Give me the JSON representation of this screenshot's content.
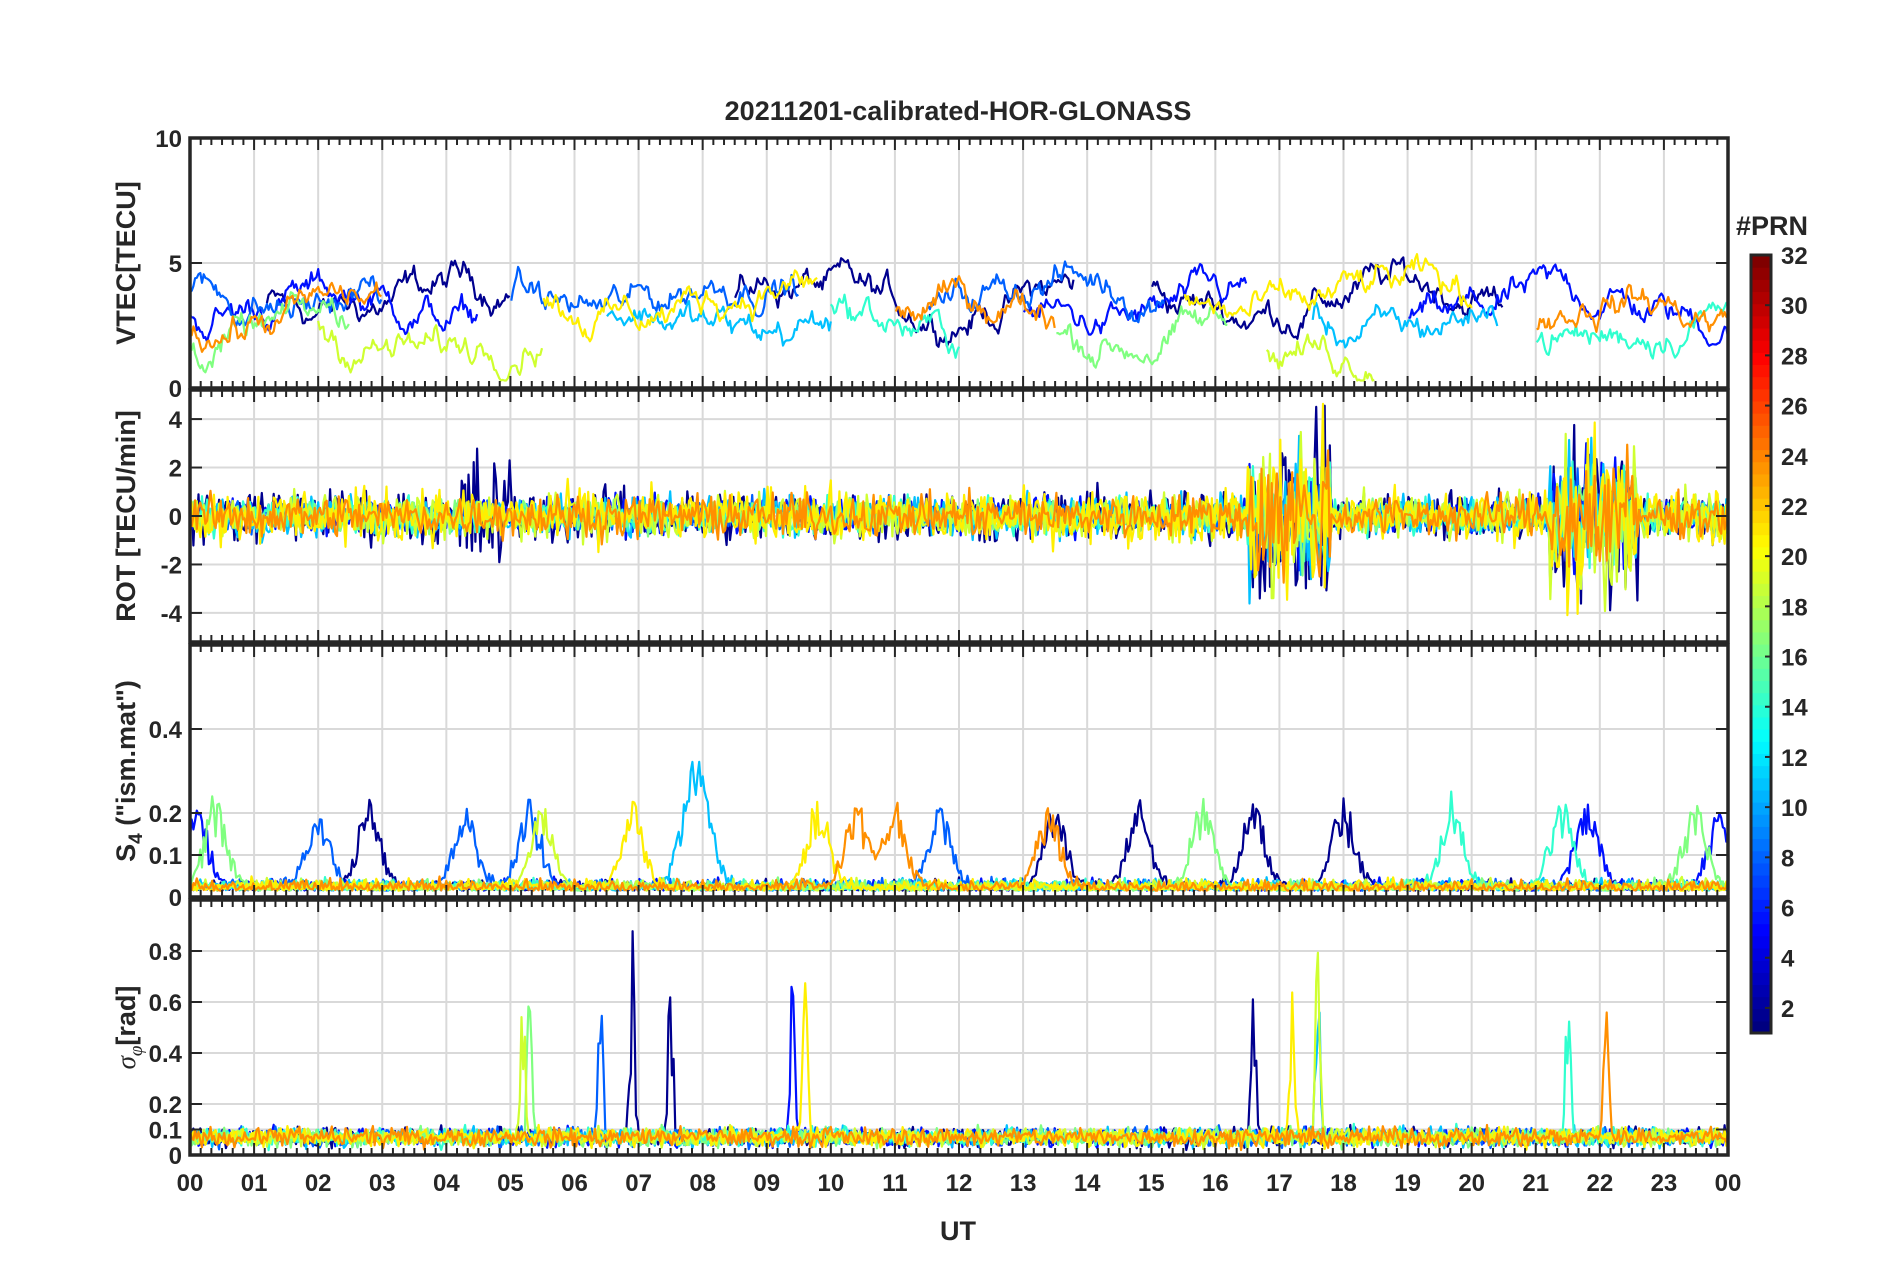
{
  "chart_data": {
    "type": "line",
    "title": "20211201-calibrated-HOR-GLONASS",
    "xlabel": "UT",
    "x_range_hours": [
      0,
      24
    ],
    "x_tick_labels": [
      "00",
      "01",
      "02",
      "03",
      "04",
      "05",
      "06",
      "07",
      "08",
      "09",
      "10",
      "11",
      "12",
      "13",
      "14",
      "15",
      "16",
      "17",
      "18",
      "19",
      "20",
      "21",
      "22",
      "23",
      "00"
    ],
    "panels": [
      {
        "id": "vtec",
        "ylabel": "VTEC[TECU]",
        "ylim": [
          0,
          10
        ],
        "yticks": [
          0,
          5,
          10
        ],
        "ytick_labels": [
          "0",
          "5",
          "10"
        ],
        "grid": true
      },
      {
        "id": "rot",
        "ylabel": "ROT [TECU/min]",
        "ylim": [
          -5.2,
          5.2
        ],
        "yticks": [
          -4,
          -2,
          0,
          2,
          4
        ],
        "ytick_labels": [
          "-4",
          "-2",
          "0",
          "2",
          "4"
        ],
        "grid": true
      },
      {
        "id": "s4",
        "ylabel_main": "S",
        "ylabel_sub": "4",
        "ylabel_rest": " (\"ism.mat\")",
        "ylim": [
          0,
          0.6
        ],
        "yticks": [
          0,
          0.1,
          0.2,
          0.4
        ],
        "ytick_labels": [
          "0",
          "0.1",
          "0.2",
          "0.4"
        ],
        "grid": true
      },
      {
        "id": "sigma",
        "ylabel_main": "σ",
        "ylabel_sub": "φ",
        "ylabel_rest": "[rad]",
        "ylim": [
          0,
          1
        ],
        "yticks": [
          0,
          0.1,
          0.2,
          0.4,
          0.6,
          0.8
        ],
        "ytick_labels": [
          "0",
          "0.1",
          "0.2",
          "0.4",
          "0.6",
          "0.8"
        ],
        "grid": true
      }
    ],
    "colorbar": {
      "title": "#PRN",
      "range": [
        1,
        32
      ],
      "tick_values": [
        2,
        4,
        6,
        8,
        10,
        12,
        14,
        16,
        18,
        20,
        22,
        24,
        26,
        28,
        30,
        32
      ],
      "tick_labels": [
        "2",
        "4",
        "6",
        "8",
        "10",
        "12",
        "14",
        "16",
        "18",
        "20",
        "22",
        "24",
        "26",
        "28",
        "30",
        "32"
      ],
      "colormap": "jet"
    },
    "series": [
      {
        "prn": 2,
        "color": "#00008f",
        "vtec_base": 3.6,
        "vtec_windows": [
          [
            1.2,
            5.0
          ],
          [
            8.5,
            13.8
          ],
          [
            15.0,
            20.5
          ]
        ],
        "rot_amp": 0.9,
        "s4_peak_hours": [
          2.8,
          13.5,
          14.8,
          16.6,
          18.0
        ],
        "sigma_peak_hours": [
          6.9,
          7.5,
          16.6
        ]
      },
      {
        "prn": 5,
        "color": "#0010ff",
        "vtec_base": 3.2,
        "vtec_windows": [
          [
            0.0,
            4.5
          ],
          [
            13.0,
            16.5
          ],
          [
            19.0,
            24.0
          ]
        ],
        "rot_amp": 0.6,
        "s4_peak_hours": [
          0.1,
          21.8,
          23.9
        ],
        "sigma_peak_hours": [
          9.4
        ]
      },
      {
        "prn": 9,
        "color": "#0060ff",
        "vtec_base": 3.8,
        "vtec_windows": [
          [
            0.0,
            3.0
          ],
          [
            5.0,
            9.5
          ],
          [
            11.5,
            15.2
          ]
        ],
        "rot_amp": 0.5,
        "s4_peak_hours": [
          2.0,
          4.3,
          5.3,
          11.7
        ],
        "sigma_peak_hours": [
          6.4
        ]
      },
      {
        "prn": 12,
        "color": "#00c0ff",
        "vtec_base": 2.8,
        "vtec_windows": [
          [
            6.5,
            10.0
          ],
          [
            17.5,
            20.4
          ]
        ],
        "rot_amp": 0.7,
        "s4_peak_hours": [
          7.8,
          8.0
        ],
        "sigma_peak_hours": [
          17.6
        ]
      },
      {
        "prn": 14,
        "color": "#30ffcf",
        "vtec_base": 2.6,
        "vtec_windows": [
          [
            10.0,
            12.0
          ],
          [
            21.0,
            24.0
          ]
        ],
        "rot_amp": 0.6,
        "s4_peak_hours": [
          19.7,
          21.4
        ],
        "sigma_peak_hours": [
          21.5
        ]
      },
      {
        "prn": 17,
        "color": "#80ff80",
        "vtec_base": 2.4,
        "vtec_windows": [
          [
            0.0,
            2.5
          ],
          [
            13.5,
            16.2
          ]
        ],
        "rot_amp": 0.5,
        "s4_peak_hours": [
          0.4,
          15.8,
          23.5
        ],
        "sigma_peak_hours": [
          5.3
        ]
      },
      {
        "prn": 19,
        "color": "#cfff30",
        "vtec_base": 2.0,
        "vtec_windows": [
          [
            2.0,
            5.5
          ],
          [
            16.8,
            18.5
          ]
        ],
        "rot_amp": 0.8,
        "s4_peak_hours": [
          5.5
        ],
        "sigma_peak_hours": [
          5.2,
          17.6
        ]
      },
      {
        "prn": 21,
        "color": "#ffef00",
        "vtec_base": 3.5,
        "vtec_windows": [
          [
            5.5,
            9.8
          ],
          [
            15.5,
            20.0
          ]
        ],
        "rot_amp": 0.9,
        "s4_peak_hours": [
          6.9,
          9.8
        ],
        "sigma_peak_hours": [
          9.6,
          17.2
        ]
      },
      {
        "prn": 23,
        "color": "#ff8f00",
        "vtec_base": 3.0,
        "vtec_windows": [
          [
            0.0,
            3.0
          ],
          [
            11.0,
            13.5
          ],
          [
            21.0,
            24.0
          ]
        ],
        "rot_amp": 0.7,
        "s4_peak_hours": [
          10.4,
          11.0,
          13.4
        ],
        "sigma_peak_hours": [
          22.1
        ]
      }
    ]
  }
}
